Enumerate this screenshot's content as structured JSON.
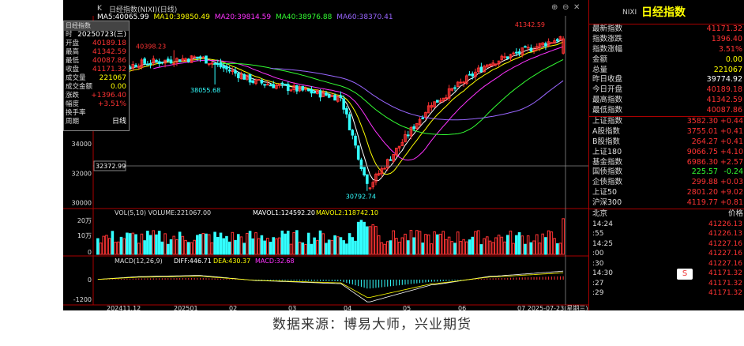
{
  "chart_header": {
    "title": "日经指数(NIXI)(日线)",
    "k_label": "K",
    "ma5": "MA5:40065.99",
    "ma10": "MA10:39850.49",
    "ma20": "MA20:39814.59",
    "ma40": "MA40:38976.88",
    "ma60": "MA60:38370.41",
    "colors": {
      "ma5": "#ffffff",
      "ma10": "#ffff00",
      "ma20": "#ff33ff",
      "ma40": "#33ff33",
      "ma60": "#9966ff"
    }
  },
  "info_box": {
    "header": "日经指数",
    "date_label": "时",
    "date": "20250723(三)",
    "rows": [
      {
        "label": "开盘",
        "value": "40189.18",
        "color": "#ff3333"
      },
      {
        "label": "最高",
        "value": "41342.59",
        "color": "#ff3333"
      },
      {
        "label": "最低",
        "value": "40087.86",
        "color": "#ff3333"
      },
      {
        "label": "收盘",
        "value": "41171.32",
        "color": "#ff3333"
      },
      {
        "label": "成交量",
        "value": "221067",
        "color": "#ffff00"
      },
      {
        "label": "成交金额",
        "value": "0.00",
        "color": "#ffff00"
      },
      {
        "label": "涨跌",
        "value": "+1396.40",
        "color": "#ff3333"
      },
      {
        "label": "幅度",
        "value": "+3.51%",
        "color": "#ff3333"
      },
      {
        "label": "换手率",
        "value": "",
        "color": "#ffffff"
      },
      {
        "label": "周期",
        "value": "日线",
        "color": "#ffffff"
      }
    ]
  },
  "price_axis": [
    "34000",
    "32000",
    "30000"
  ],
  "annotations": {
    "high_recent": "41342.59",
    "high_early": "40398.23",
    "low_mid": "38055.68",
    "low_bottom": "30792.74",
    "crosshair_price": "32372.99"
  },
  "volume_panel": {
    "label": "VOL(5,10) VOLUME:221067.00",
    "mavol1": "MAVOL1:124592.20",
    "mavol2": "MAVOL2:118742.10",
    "axis": [
      "20万",
      "10万",
      "0"
    ]
  },
  "macd_panel": {
    "label": "MACD(12,26,9)",
    "diff": "DIFF:446.71",
    "dea": "DEA:430.37",
    "macd": "MACD:32.68",
    "axis": [
      "0",
      "-1200"
    ]
  },
  "date_axis": [
    "202411.12",
    "202501",
    "02",
    "03",
    "04",
    "05",
    "06",
    "07 2025-07-23(星期三)"
  ],
  "right_panel": {
    "code": "NIXI",
    "name": "日经指数",
    "quote": [
      {
        "label": "最新指数",
        "value": "41171.32",
        "color": "#ff3333"
      },
      {
        "label": "指数涨跌",
        "value": "1396.40",
        "color": "#ff3333"
      },
      {
        "label": "指数涨幅",
        "value": "3.51%",
        "color": "#ff3333"
      },
      {
        "label": "金额",
        "value": "0.00",
        "color": "#ffff00"
      },
      {
        "label": "总量",
        "value": "221067",
        "color": "#ffff00"
      },
      {
        "label": "昨日收盘",
        "value": "39774.92",
        "color": "#ffffff"
      },
      {
        "label": "今日开盘",
        "value": "40189.18",
        "color": "#ff3333"
      },
      {
        "label": "最高指数",
        "value": "41342.59",
        "color": "#ff3333"
      },
      {
        "label": "最低指数",
        "value": "40087.86",
        "color": "#ff3333"
      }
    ],
    "indices": [
      {
        "label": "上证指数",
        "value": "3582.30",
        "change": "+0.44",
        "color": "#ff3333"
      },
      {
        "label": "A股指数",
        "value": "3755.01",
        "change": "+0.41",
        "color": "#ff3333"
      },
      {
        "label": "B股指数",
        "value": "264.27",
        "change": "+0.41",
        "color": "#ff3333"
      },
      {
        "label": "上证180",
        "value": "9066.75",
        "change": "+4.10",
        "color": "#ff3333"
      },
      {
        "label": "基金指数",
        "value": "6986.30",
        "change": "+2.57",
        "color": "#ff3333"
      },
      {
        "label": "国债指数",
        "value": "225.57",
        "change": "-0.24",
        "color": "#33ff33"
      },
      {
        "label": "企债指数",
        "value": "299.88",
        "change": "+0.03",
        "color": "#ff3333"
      },
      {
        "label": "上证50",
        "value": "2801.20",
        "change": "+9.02",
        "color": "#ff3333"
      },
      {
        "label": "沪深300",
        "value": "4119.77",
        "change": "+0.81",
        "color": "#ff3333"
      }
    ],
    "ticks_header": {
      "left": "北京",
      "right": "价格"
    },
    "ticks": [
      {
        "time": "14:24",
        "price": "41226.13"
      },
      {
        "time": ":55",
        "price": "41226.13"
      },
      {
        "time": "14:25",
        "price": "41227.16"
      },
      {
        "time": ":00",
        "price": "41227.16"
      },
      {
        "time": ":30",
        "price": "41227.16"
      },
      {
        "time": "14:30",
        "price": "41171.32"
      },
      {
        "time": ":27",
        "price": "41171.32"
      },
      {
        "time": ":29",
        "price": "41171.32"
      }
    ],
    "badge": "S"
  },
  "source": "数据来源：博易大师，兴业期货"
}
